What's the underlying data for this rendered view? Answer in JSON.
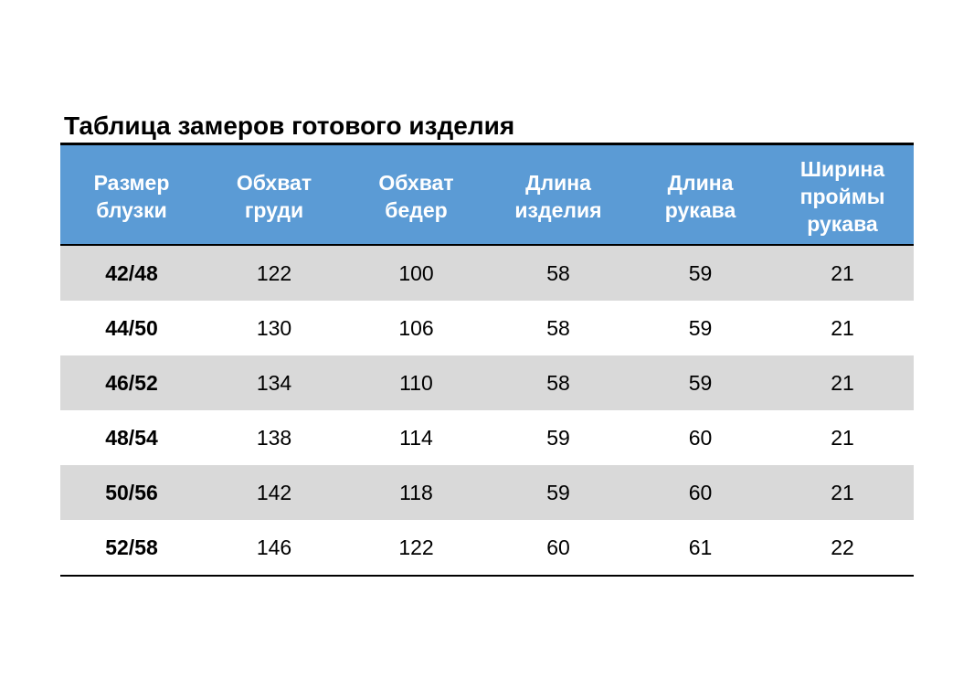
{
  "title": "Таблица замеров готового изделия",
  "table": {
    "headers": [
      "Размер\nблузки",
      "Обхват\nгруди",
      "Обхват\nбедер",
      "Длина\nизделия",
      "Длина\nрукава",
      "Ширина\nпроймы\nрукава"
    ],
    "rows": [
      [
        "42/48",
        "122",
        "100",
        "58",
        "59",
        "21"
      ],
      [
        "44/50",
        "130",
        "106",
        "58",
        "59",
        "21"
      ],
      [
        "46/52",
        "134",
        "110",
        "58",
        "59",
        "21"
      ],
      [
        "48/54",
        "138",
        "114",
        "59",
        "60",
        "21"
      ],
      [
        "50/56",
        "142",
        "118",
        "59",
        "60",
        "21"
      ],
      [
        "52/58",
        "146",
        "122",
        "60",
        "61",
        "22"
      ]
    ]
  },
  "colors": {
    "header_background": "#5b9bd5",
    "header_text": "#ffffff",
    "shaded_row": "#d9d9d9",
    "rule": "#000000"
  }
}
